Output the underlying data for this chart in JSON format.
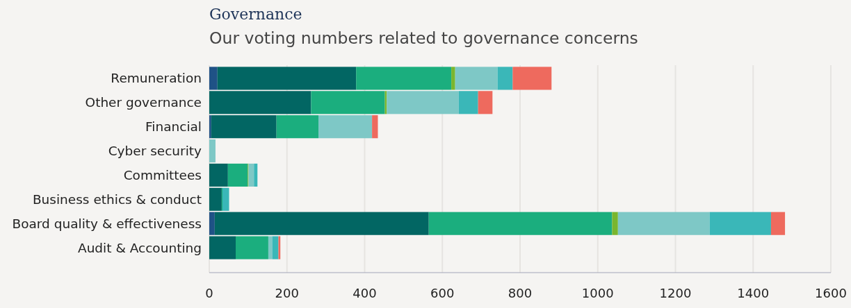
{
  "chart_data": {
    "type": "bar",
    "orientation": "horizontal",
    "stacked": true,
    "title": "Governance",
    "subtitle": "Our voting numbers related to governance concerns",
    "categories": [
      "Remuneration",
      "Other governance",
      "Financial",
      "Cyber security",
      "Committees",
      "Business ethics & conduct",
      "Board quality & effectiveness",
      "Audit & Accounting"
    ],
    "series": [
      {
        "color": "#1f5286",
        "values": [
          21,
          null,
          5,
          null,
          null,
          null,
          14,
          null
        ]
      },
      {
        "color": "#026663",
        "values": [
          357,
          262,
          168,
          null,
          48,
          32,
          551,
          68
        ]
      },
      {
        "color": "#1bae7e",
        "values": [
          245,
          190,
          108,
          null,
          51,
          2,
          472,
          84
        ]
      },
      {
        "color": "#7ab62e",
        "values": [
          10,
          5,
          null,
          null,
          2,
          null,
          15,
          null
        ]
      },
      {
        "color": "#7ec8c6",
        "values": [
          109,
          185,
          138,
          16,
          14,
          null,
          236,
          10
        ]
      },
      {
        "color": "#3ab7b8",
        "values": [
          39,
          50,
          null,
          null,
          9,
          17,
          158,
          16
        ]
      },
      {
        "color": "#ee6a5e",
        "values": [
          100,
          37,
          15,
          null,
          null,
          null,
          36,
          5
        ]
      }
    ],
    "xlim": [
      0,
      1600
    ],
    "xticks": [
      0,
      200,
      400,
      600,
      800,
      1000,
      1200,
      1400,
      1600
    ],
    "grid": "x"
  }
}
